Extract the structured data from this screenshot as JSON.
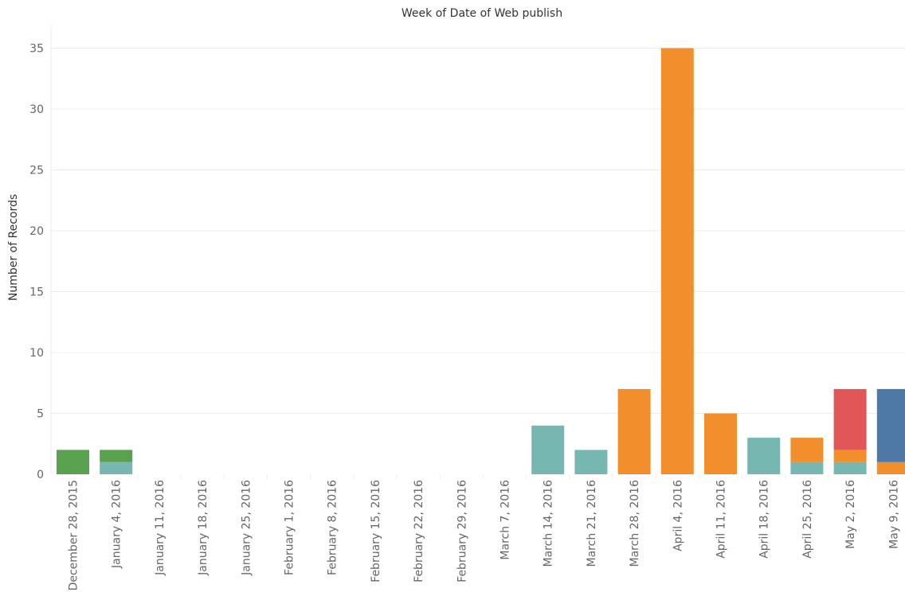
{
  "chart_data": {
    "type": "bar",
    "stacked": true,
    "title": "Week of Date of Web publish",
    "xlabel": "",
    "ylabel": "Number of Records",
    "ylim": [
      0,
      36
    ],
    "yticks": [
      0,
      5,
      10,
      15,
      20,
      25,
      30,
      35
    ],
    "grid": true,
    "categories": [
      "December 28, 2015",
      "January 4, 2016",
      "January 11, 2016",
      "January 18, 2016",
      "January 25, 2016",
      "February 1, 2016",
      "February 8, 2016",
      "February 15, 2016",
      "February 22, 2016",
      "February 29, 2016",
      "March 7, 2016",
      "March 14, 2016",
      "March 21, 2016",
      "March 28, 2016",
      "April 4, 2016",
      "April 11, 2016",
      "April 18, 2016",
      "April 25, 2016",
      "May 2, 2016",
      "May 9, 2016"
    ],
    "series": [
      {
        "color": "#59a14f",
        "values": [
          2,
          1,
          0,
          0,
          0,
          0,
          0,
          0,
          0,
          0,
          0,
          0,
          0,
          0,
          0,
          0,
          0,
          0,
          0,
          0
        ]
      },
      {
        "color": "#76b7b2",
        "values": [
          0,
          1,
          0,
          0,
          0,
          0,
          0,
          0,
          0,
          0,
          0,
          4,
          2,
          0,
          0,
          0,
          3,
          1,
          1,
          0
        ]
      },
      {
        "color": "#f28e2b",
        "values": [
          0,
          0,
          0,
          0,
          0,
          0,
          0,
          0,
          0,
          0,
          0,
          0,
          0,
          7,
          35,
          5,
          0,
          2,
          1,
          1
        ]
      },
      {
        "color": "#e15759",
        "values": [
          0,
          0,
          0,
          0,
          0,
          0,
          0,
          0,
          0,
          0,
          0,
          0,
          0,
          0,
          0,
          0,
          0,
          0,
          5,
          0
        ]
      },
      {
        "color": "#4e79a7",
        "values": [
          0,
          0,
          0,
          0,
          0,
          0,
          0,
          0,
          0,
          0,
          0,
          0,
          0,
          0,
          0,
          0,
          0,
          0,
          0,
          6
        ]
      }
    ],
    "stack_order_bottom_to_top": [
      "#76b7b2",
      "#59a14f",
      "#f28e2b",
      "#e15759",
      "#4e79a7"
    ]
  }
}
